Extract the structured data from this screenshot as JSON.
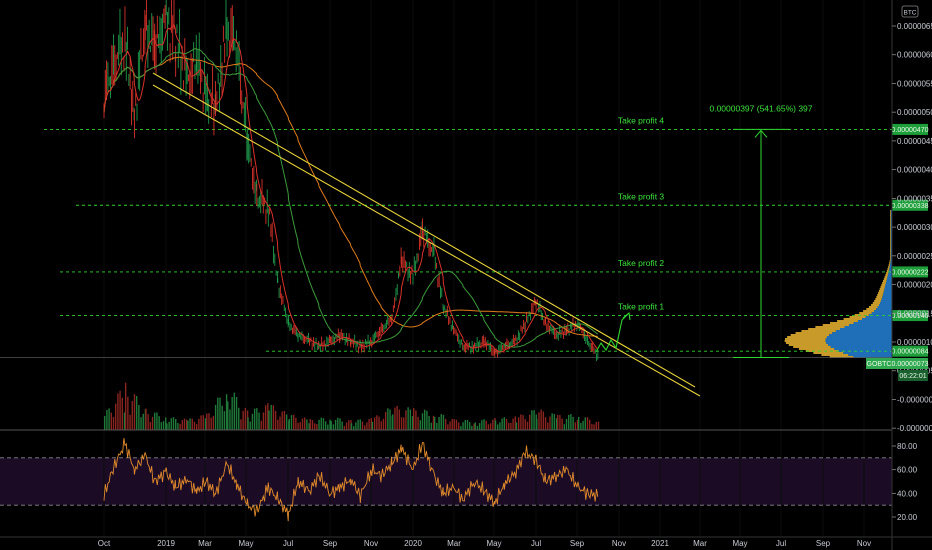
{
  "chart_data": {
    "type": "line",
    "symbol": "GOBTC",
    "currency": "BTC",
    "last_price": "0.00000073",
    "countdown": "06:22:01",
    "measure_label": "0.00000397 (541.65%) 397",
    "x_ticks": [
      "Oct",
      "2019",
      "Mar",
      "May",
      "Jul",
      "Sep",
      "Nov",
      "2020",
      "Mar",
      "May",
      "Jul",
      "Sep",
      "Nov",
      "2021",
      "Mar",
      "May",
      "Jul",
      "Sep",
      "Nov"
    ],
    "price_axis": {
      "range": [
        -5e-07,
        6.8e-06
      ],
      "ticks": [
        "0.00000650",
        "0.00000600",
        "0.00000550",
        "0.00000500",
        "0.00000450",
        "0.00000400",
        "0.00000350",
        "0.00000300",
        "0.00000250",
        "0.00000200",
        "0.00000150",
        "0.00000100",
        "0.00000050",
        "-0.00000000",
        "-0.00000050"
      ]
    },
    "take_profits": [
      {
        "name": "Take profit 4",
        "price": 4.7e-06,
        "badge": "0.00000470"
      },
      {
        "name": "Take profit 3",
        "price": 3.38e-06,
        "badge": "0.00000338"
      },
      {
        "name": "Take profit 2",
        "price": 2.22e-06,
        "badge": "0.00000222"
      },
      {
        "name": "Take profit 1",
        "price": 1.46e-06,
        "badge": "0.00000146"
      }
    ],
    "support": {
      "price": 8.4e-07,
      "badge": "0.00000084"
    },
    "price_series": [
      [
        "2018-10-01",
        5.2e-06
      ],
      [
        "2018-10-15",
        5.8e-06
      ],
      [
        "2018-11-01",
        6.2e-06
      ],
      [
        "2018-11-15",
        4.9e-06
      ],
      [
        "2018-12-01",
        6.5e-06
      ],
      [
        "2018-12-15",
        6e-06
      ],
      [
        "2019-01-01",
        6.6e-06
      ],
      [
        "2019-01-15",
        6.2e-06
      ],
      [
        "2019-02-01",
        5.5e-06
      ],
      [
        "2019-02-15",
        5.8e-06
      ],
      [
        "2019-03-01",
        5.3e-06
      ],
      [
        "2019-03-15",
        5e-06
      ],
      [
        "2019-04-01",
        6.4e-06
      ],
      [
        "2019-04-15",
        6.1e-06
      ],
      [
        "2019-05-01",
        4.4e-06
      ],
      [
        "2019-05-15",
        3.5e-06
      ],
      [
        "2019-06-01",
        3.3e-06
      ],
      [
        "2019-06-15",
        2e-06
      ],
      [
        "2019-07-01",
        1.3e-06
      ],
      [
        "2019-07-15",
        1.1e-06
      ],
      [
        "2019-08-01",
        1e-06
      ],
      [
        "2019-08-15",
        9e-07
      ],
      [
        "2019-09-01",
        1e-06
      ],
      [
        "2019-09-15",
        1.1e-06
      ],
      [
        "2019-10-01",
        1e-06
      ],
      [
        "2019-10-15",
        9e-07
      ],
      [
        "2019-11-01",
        1e-06
      ],
      [
        "2019-11-15",
        1.2e-06
      ],
      [
        "2019-12-01",
        1.4e-06
      ],
      [
        "2019-12-15",
        2.4e-06
      ],
      [
        "2020-01-01",
        2.1e-06
      ],
      [
        "2020-01-15",
        2.9e-06
      ],
      [
        "2020-02-01",
        2.5e-06
      ],
      [
        "2020-02-15",
        1.6e-06
      ],
      [
        "2020-03-01",
        1.2e-06
      ],
      [
        "2020-03-15",
        9e-07
      ],
      [
        "2020-04-01",
        9e-07
      ],
      [
        "2020-04-15",
        1e-06
      ],
      [
        "2020-05-01",
        8e-07
      ],
      [
        "2020-05-15",
        9e-07
      ],
      [
        "2020-06-01",
        1e-06
      ],
      [
        "2020-06-15",
        1.3e-06
      ],
      [
        "2020-07-01",
        1.7e-06
      ],
      [
        "2020-07-15",
        1.3e-06
      ],
      [
        "2020-08-01",
        1.1e-06
      ],
      [
        "2020-08-15",
        1.2e-06
      ],
      [
        "2020-09-01",
        1.3e-06
      ],
      [
        "2020-09-15",
        1e-06
      ],
      [
        "2020-10-01",
        7.3e-07
      ]
    ],
    "rsi_axis": {
      "range": [
        10,
        90
      ],
      "ticks": [
        "80.00",
        "60.00",
        "40.00",
        "20.00"
      ],
      "bands": [
        70,
        30
      ]
    },
    "rsi_series": [
      [
        "2018-10-01",
        38
      ],
      [
        "2018-10-15",
        62
      ],
      [
        "2018-11-01",
        82
      ],
      [
        "2018-11-15",
        60
      ],
      [
        "2018-12-01",
        72
      ],
      [
        "2018-12-15",
        50
      ],
      [
        "2019-01-01",
        58
      ],
      [
        "2019-01-15",
        45
      ],
      [
        "2019-02-01",
        52
      ],
      [
        "2019-02-15",
        41
      ],
      [
        "2019-03-01",
        50
      ],
      [
        "2019-03-15",
        40
      ],
      [
        "2019-04-01",
        65
      ],
      [
        "2019-04-15",
        48
      ],
      [
        "2019-05-01",
        30
      ],
      [
        "2019-05-15",
        25
      ],
      [
        "2019-06-01",
        45
      ],
      [
        "2019-06-15",
        35
      ],
      [
        "2019-07-01",
        22
      ],
      [
        "2019-07-15",
        50
      ],
      [
        "2019-08-01",
        42
      ],
      [
        "2019-08-15",
        55
      ],
      [
        "2019-09-01",
        40
      ],
      [
        "2019-09-15",
        45
      ],
      [
        "2019-10-01",
        52
      ],
      [
        "2019-10-15",
        38
      ],
      [
        "2019-11-01",
        60
      ],
      [
        "2019-11-15",
        55
      ],
      [
        "2019-12-01",
        65
      ],
      [
        "2019-12-15",
        78
      ],
      [
        "2020-01-01",
        60
      ],
      [
        "2020-01-15",
        82
      ],
      [
        "2020-02-01",
        55
      ],
      [
        "2020-02-15",
        40
      ],
      [
        "2020-03-01",
        45
      ],
      [
        "2020-03-15",
        35
      ],
      [
        "2020-04-01",
        50
      ],
      [
        "2020-04-15",
        42
      ],
      [
        "2020-05-01",
        32
      ],
      [
        "2020-05-15",
        48
      ],
      [
        "2020-06-01",
        58
      ],
      [
        "2020-06-15",
        75
      ],
      [
        "2020-07-01",
        68
      ],
      [
        "2020-07-15",
        50
      ],
      [
        "2020-08-01",
        55
      ],
      [
        "2020-08-15",
        60
      ],
      [
        "2020-09-01",
        45
      ],
      [
        "2020-09-15",
        40
      ],
      [
        "2020-10-01",
        38
      ]
    ],
    "volume_series": [
      [
        "2018-10-01",
        30
      ],
      [
        "2018-11-01",
        90
      ],
      [
        "2018-12-01",
        40
      ],
      [
        "2019-01-01",
        25
      ],
      [
        "2019-02-01",
        20
      ],
      [
        "2019-03-01",
        30
      ],
      [
        "2019-04-01",
        85
      ],
      [
        "2019-05-01",
        35
      ],
      [
        "2019-06-01",
        50
      ],
      [
        "2019-07-01",
        30
      ],
      [
        "2019-08-01",
        20
      ],
      [
        "2019-09-01",
        25
      ],
      [
        "2019-10-01",
        18
      ],
      [
        "2019-11-01",
        22
      ],
      [
        "2019-12-01",
        45
      ],
      [
        "2020-01-01",
        40
      ],
      [
        "2020-02-01",
        35
      ],
      [
        "2020-03-01",
        20
      ],
      [
        "2020-04-01",
        18
      ],
      [
        "2020-05-01",
        22
      ],
      [
        "2020-06-01",
        25
      ],
      [
        "2020-07-01",
        40
      ],
      [
        "2020-08-01",
        28
      ],
      [
        "2020-09-01",
        30
      ],
      [
        "2020-10-01",
        15
      ]
    ],
    "colors": {
      "take_profit": "#2fd62f",
      "trendline": "#e8d33a",
      "ma_orange": "#e07b1a",
      "ma_green": "#3c9a3c",
      "price_red": "#d8322a",
      "price_green": "#1f9a4a",
      "rsi_line": "#e08a2c",
      "rsi_band": "#1b0b25",
      "volume_profile_up": "#1f6fb8",
      "volume_profile_down": "#c79a2a"
    }
  }
}
